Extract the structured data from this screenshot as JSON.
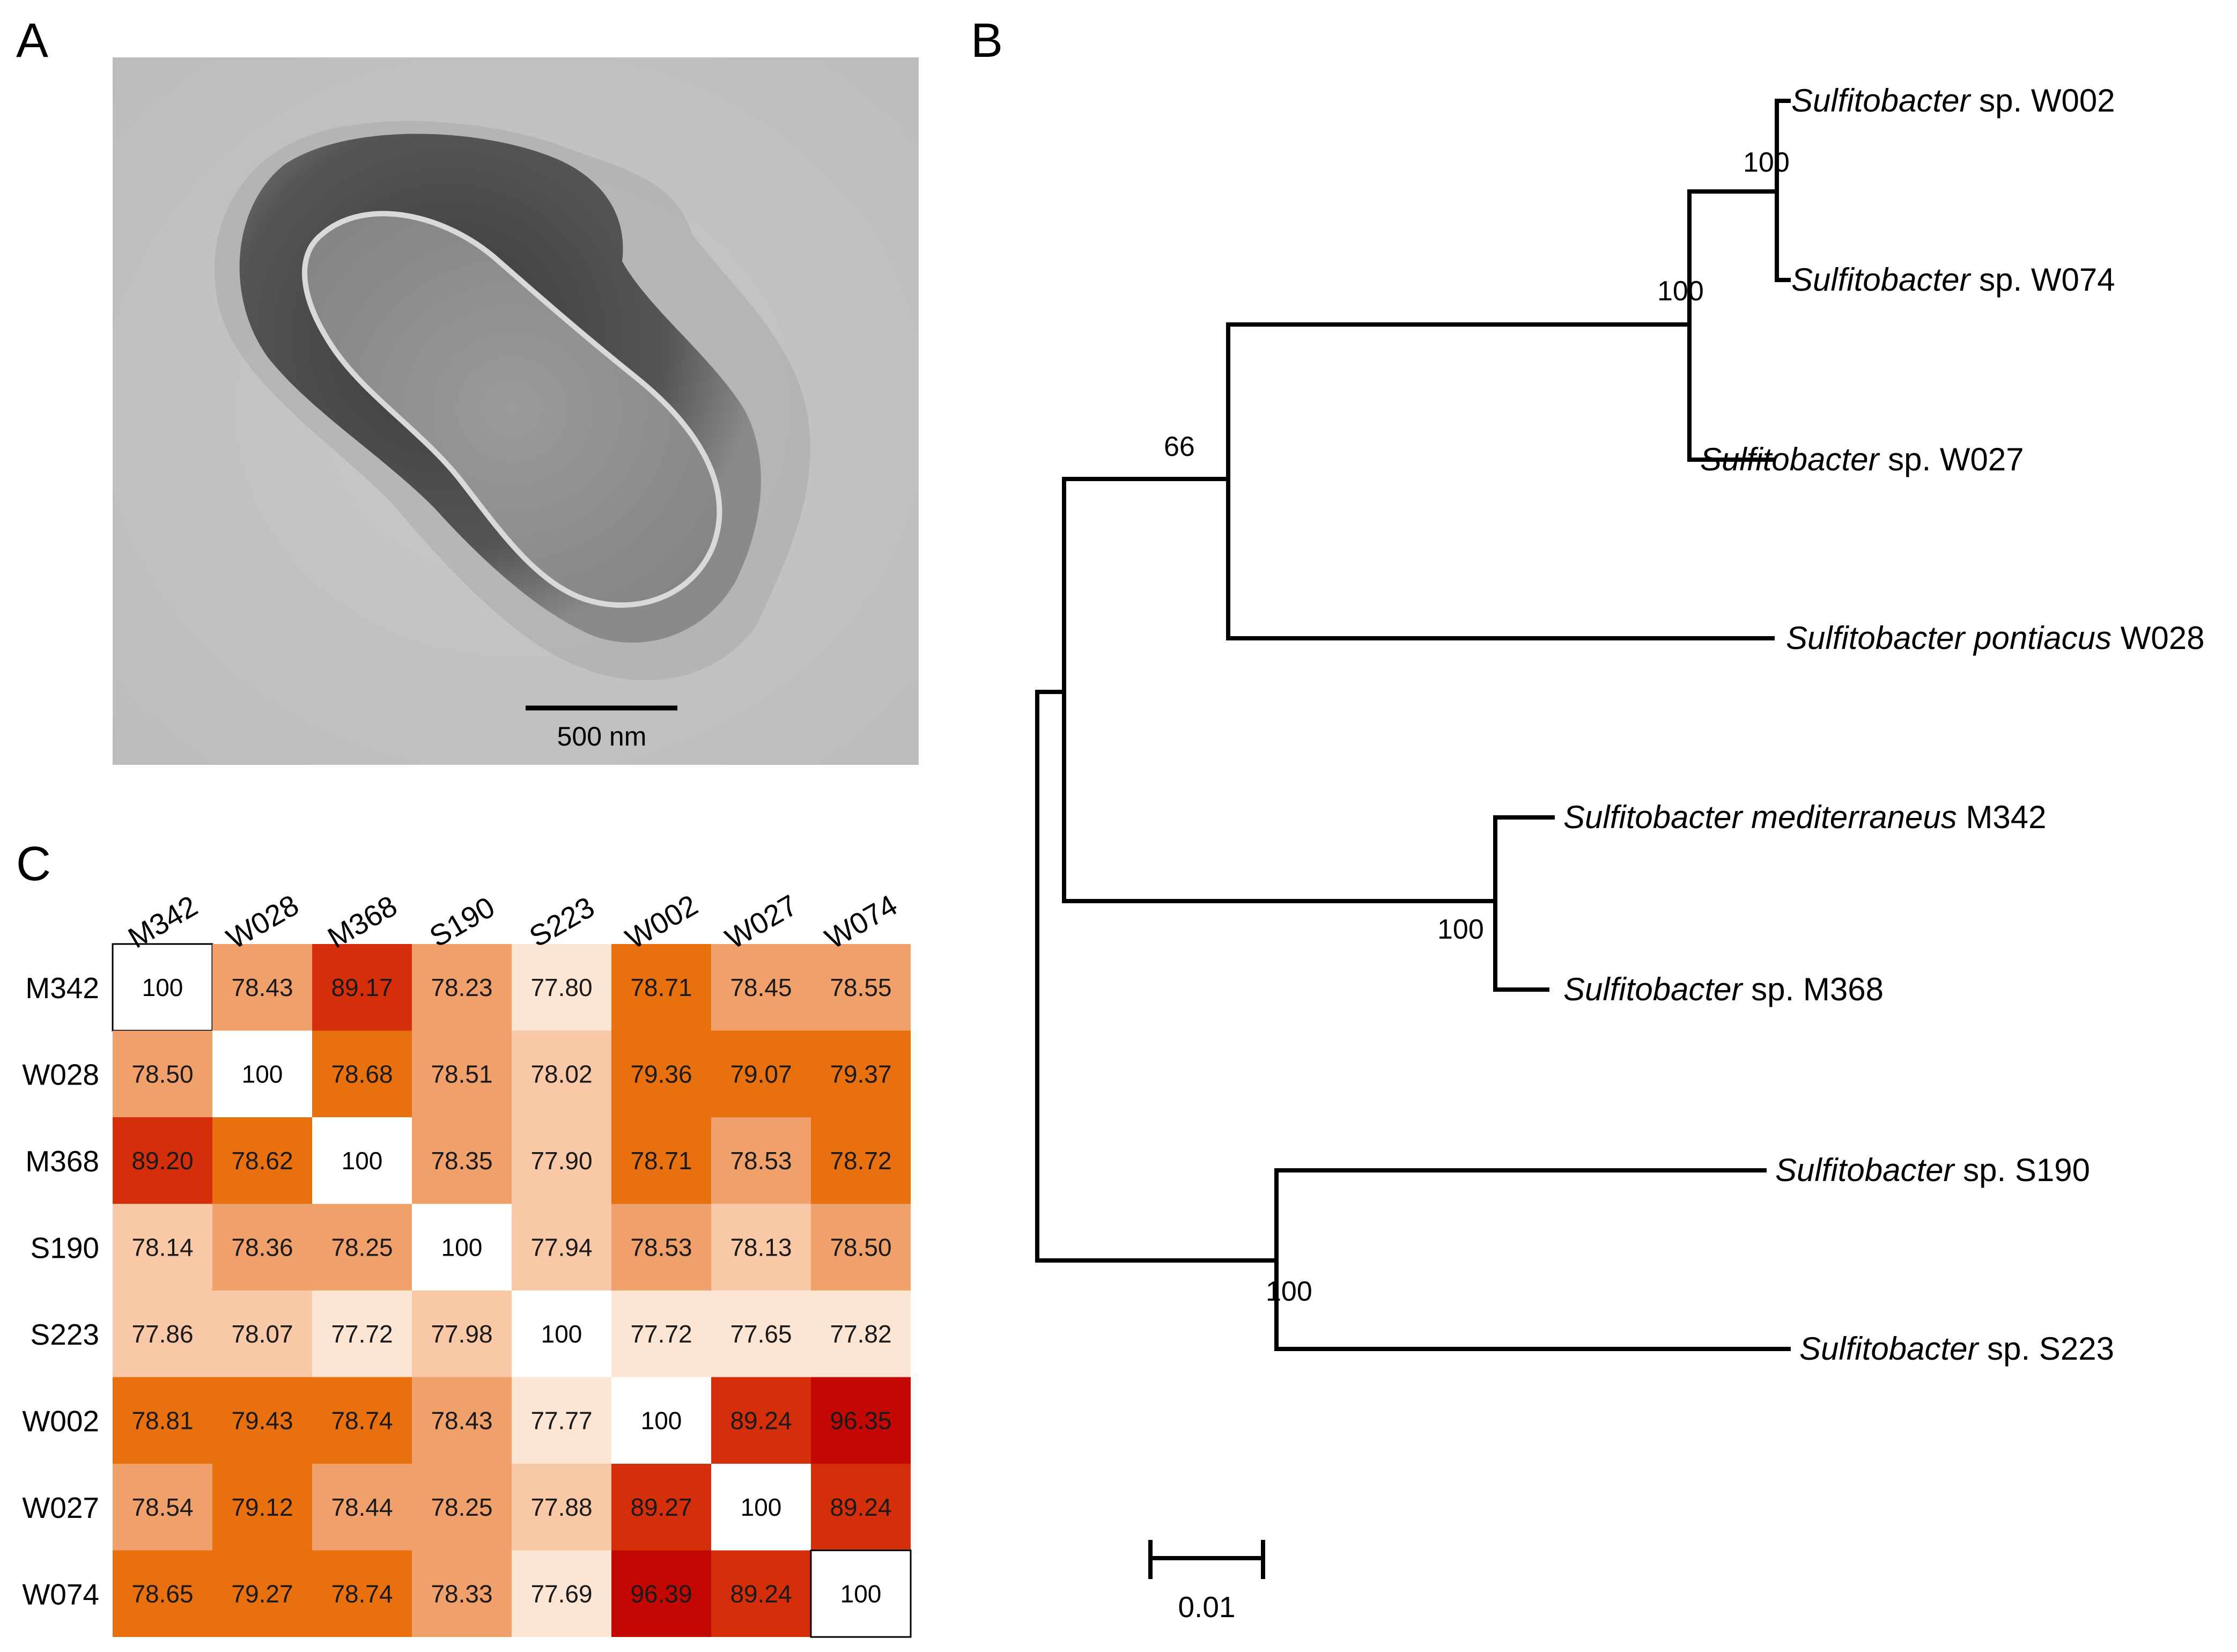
{
  "panels": {
    "a": {
      "letter": "A",
      "scale_bar_label": "500 nm"
    },
    "b": {
      "letter": "B",
      "leaves": [
        {
          "genus": "Sulfitobacter",
          "rest": " sp. W002",
          "rest_italic": false
        },
        {
          "genus": "Sulfitobacter",
          "rest": " sp. W074",
          "rest_italic": false
        },
        {
          "genus": "Sulfitobacter",
          "rest": " sp. W027",
          "rest_italic": false
        },
        {
          "genus": "Sulfitobacter pontiacus",
          "rest": " W028",
          "rest_italic": false
        },
        {
          "genus": "Sulfitobacter mediterraneus",
          "rest": " M342",
          "rest_italic": false
        },
        {
          "genus": "Sulfitobacter",
          "rest": " sp. M368",
          "rest_italic": false
        },
        {
          "genus": "Sulfitobacter",
          "rest": " sp. S190",
          "rest_italic": false
        },
        {
          "genus": "Sulfitobacter",
          "rest": " sp. S223",
          "rest_italic": false
        }
      ],
      "bootstrap": [
        "100",
        "100",
        "66",
        "100",
        "100"
      ],
      "scale_label": "0.01"
    },
    "c": {
      "letter": "C",
      "labels": [
        "M342",
        "W028",
        "M368",
        "S190",
        "S223",
        "W002",
        "W027",
        "W074"
      ],
      "matrix": [
        [
          "100",
          "78.43",
          "89.17",
          "78.23",
          "77.80",
          "78.71",
          "78.45",
          "78.55"
        ],
        [
          "78.50",
          "100",
          "78.68",
          "78.51",
          "78.02",
          "79.36",
          "79.07",
          "79.37"
        ],
        [
          "89.20",
          "78.62",
          "100",
          "78.35",
          "77.90",
          "78.71",
          "78.53",
          "78.72"
        ],
        [
          "78.14",
          "78.36",
          "78.25",
          "100",
          "77.94",
          "78.53",
          "78.13",
          "78.50"
        ],
        [
          "77.86",
          "78.07",
          "77.72",
          "77.98",
          "100",
          "77.72",
          "77.65",
          "77.82"
        ],
        [
          "78.81",
          "79.43",
          "78.74",
          "78.43",
          "77.77",
          "100",
          "89.24",
          "96.35"
        ],
        [
          "78.54",
          "79.12",
          "78.44",
          "78.25",
          "77.88",
          "89.27",
          "100",
          "89.24"
        ],
        [
          "78.65",
          "79.27",
          "78.74",
          "78.33",
          "77.69",
          "96.39",
          "89.24",
          "100"
        ]
      ],
      "colors": {
        "diag": "#ffffff",
        "light": "#fde5d3",
        "pale": "#f9c8a6",
        "mid": "#f0a06a",
        "orange": "#e8700e",
        "red": "#d42e0a",
        "dark": "#c30804"
      }
    }
  }
}
